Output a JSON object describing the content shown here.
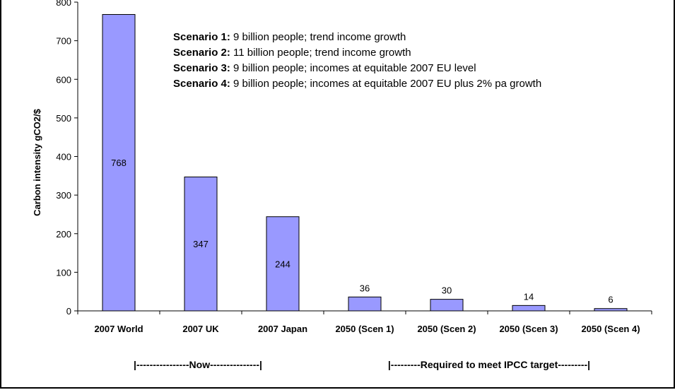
{
  "chart_data": {
    "type": "bar",
    "categories": [
      "2007 World",
      "2007 UK",
      "2007 Japan",
      "2050 (Scen 1)",
      "2050 (Scen 2)",
      "2050 (Scen 3)",
      "2050 (Scen 4)"
    ],
    "values": [
      768,
      347,
      244,
      36,
      30,
      14,
      6
    ],
    "data_labels": [
      "768",
      "347",
      "244",
      "36",
      "30",
      "14",
      "6"
    ],
    "ylabel": "Carbon intensity gCO2/$",
    "ylim": [
      0,
      800
    ],
    "yticks": [
      0,
      100,
      200,
      300,
      400,
      500,
      600,
      700,
      800
    ],
    "bar_color": "#9999ff",
    "grid": false,
    "legend": [
      {
        "key": "Scenario 1:",
        "text": " 9 billion people; trend income growth"
      },
      {
        "key": "Scenario 2:",
        "text": " 11 billion people; trend income growth"
      },
      {
        "key": "Scenario 3:",
        "text": " 9 billion people; incomes at equitable 2007 EU level"
      },
      {
        "key": "Scenario 4:",
        "text": " 9 billion people; incomes at equitable 2007 EU plus 2% pa growth"
      }
    ],
    "groups": [
      {
        "label": "|----------------Now---------------|"
      },
      {
        "label": "|---------Required to meet IPCC target---------|"
      }
    ]
  }
}
